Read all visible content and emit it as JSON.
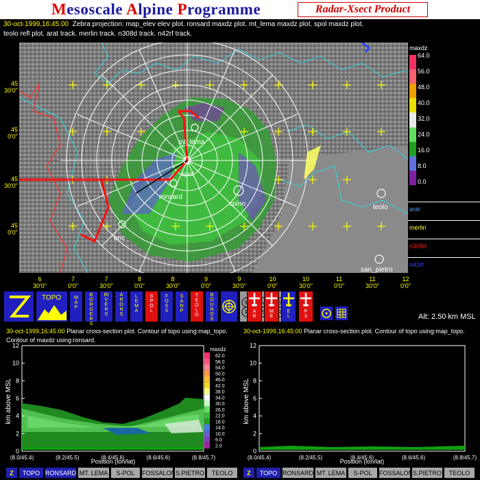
{
  "header": {
    "title_parts": [
      {
        "cap": "M",
        "rest": "esoscale "
      },
      {
        "cap": "A",
        "rest": "lpine "
      },
      {
        "cap": "P",
        "rest": "rogramme"
      }
    ],
    "product": "Radar-Xsect Product",
    "timestamp": "30-oct-1999,16:45:00",
    "line1": "Zebra projection: map_elev elev plot.  ronsard maxdz plot.  mt_lema maxdz plot.  spol maxdz plot.",
    "line2": "teolo refl plot. arat track.   merlin track.   n308d track.   n42rf track."
  },
  "map": {
    "lat_labels": [
      {
        "deg": "45",
        "min": "30'0\""
      },
      {
        "deg": "45",
        "min": "0'0\""
      },
      {
        "deg": "45",
        "min": "30'0\""
      },
      {
        "deg": "45",
        "min": "0'0\""
      }
    ],
    "lon_labels": [
      {
        "deg": "6",
        "min": "30'0\""
      },
      {
        "deg": "7",
        "min": "0'0\""
      },
      {
        "deg": "7",
        "min": "30'0\""
      },
      {
        "deg": "8",
        "min": "0'0\""
      },
      {
        "deg": "8",
        "min": "30'0\""
      },
      {
        "deg": "9",
        "min": "0'0\""
      },
      {
        "deg": "9",
        "min": "30'0\""
      },
      {
        "deg": "10",
        "min": "0'0\""
      },
      {
        "deg": "10",
        "min": "30'0\""
      },
      {
        "deg": "11",
        "min": "0'0\""
      },
      {
        "deg": "11",
        "min": "30'0\""
      },
      {
        "deg": "12",
        "min": "0'0\""
      }
    ],
    "stations": {
      "mt_lema": "mt_lema",
      "spol": "spol",
      "ronsard": "ronsard",
      "spino": "spino",
      "teolo": "teolo",
      "bric": "bric",
      "san_pietro": "san_pietro"
    }
  },
  "legend": {
    "title": "maxdz",
    "values": [
      "64.0",
      "56.0",
      "48.0",
      "40.0",
      "32.0",
      "24.0",
      "16.0",
      "8.0",
      "0.0"
    ],
    "colors": [
      "#f03060",
      "#ff6070",
      "#f0a000",
      "#e8e000",
      "#e8e8e8",
      "#60e060",
      "#20a020",
      "#6070e0",
      "#8020a0"
    ],
    "tracks": [
      {
        "name": "arat",
        "color": "#40a0ff"
      },
      {
        "name": "merlin",
        "color": "#ffff40"
      },
      {
        "name": "n308d",
        "color": "#ff2020"
      },
      {
        "name": "n42rf",
        "color": "#4040ff"
      }
    ]
  },
  "toolbar": {
    "topo": "TOPO",
    "map": "MAP",
    "borders": "BORDERS",
    "rivers": "RIVERS",
    "arons": "ARONS",
    "lema": "LEMA",
    "spol": "SPOL",
    "fossa": "FOSS",
    "sanp": "SANP",
    "teolo": "TEOLO",
    "bounds": "BOUNDS",
    "m_r": "M R",
    "m_s": "M S",
    "s_r": "S R",
    "ar": "AR",
    "me": "ME",
    "el": "EL",
    "p3": "P3"
  },
  "altitude": "Alt: 2.50 km MSL",
  "xsect_left": {
    "header1": "Planar cross-section plot.  Contour of topo using:map_topo.",
    "header2": "Contour of maxdz using:ronsard.",
    "legend_title": "maxdz",
    "legend_values": [
      "62.0",
      "58.0",
      "54.0",
      "50.0",
      "46.0",
      "42.0",
      "38.0",
      "34.0",
      "30.0",
      "26.0",
      "22.0",
      "18.0",
      "14.0",
      "10.0",
      "6.0",
      "2.0"
    ]
  },
  "xsect_right": {
    "header1": "Planar cross-section plot.  Contour of topo using:map_topo."
  },
  "xsect_common": {
    "ylabel": "km above MSL",
    "xlabel": "Position (lon/lat)",
    "yticks": [
      "12",
      "10",
      "8",
      "6",
      "4",
      "2",
      "0"
    ],
    "xticks": [
      "(8.0/45.4)",
      "(8.2/45.5)",
      "(8.4/45.6)",
      "(8.6/45.6)",
      "(8.8/45.7)"
    ]
  },
  "bottom_left": {
    "z": "Z",
    "items": [
      "TOPO",
      "RONSARD",
      "MT. LEMA",
      "S-POL",
      "FOSSALON",
      "S.PIETRO",
      "TEOLO"
    ]
  },
  "bottom_right": {
    "z": "Z",
    "items": [
      "TOPO",
      "RONSARD",
      "MT. LEMA",
      "S-POL",
      "FOSSALON",
      "S.PIETRO",
      "TEOLO"
    ]
  }
}
